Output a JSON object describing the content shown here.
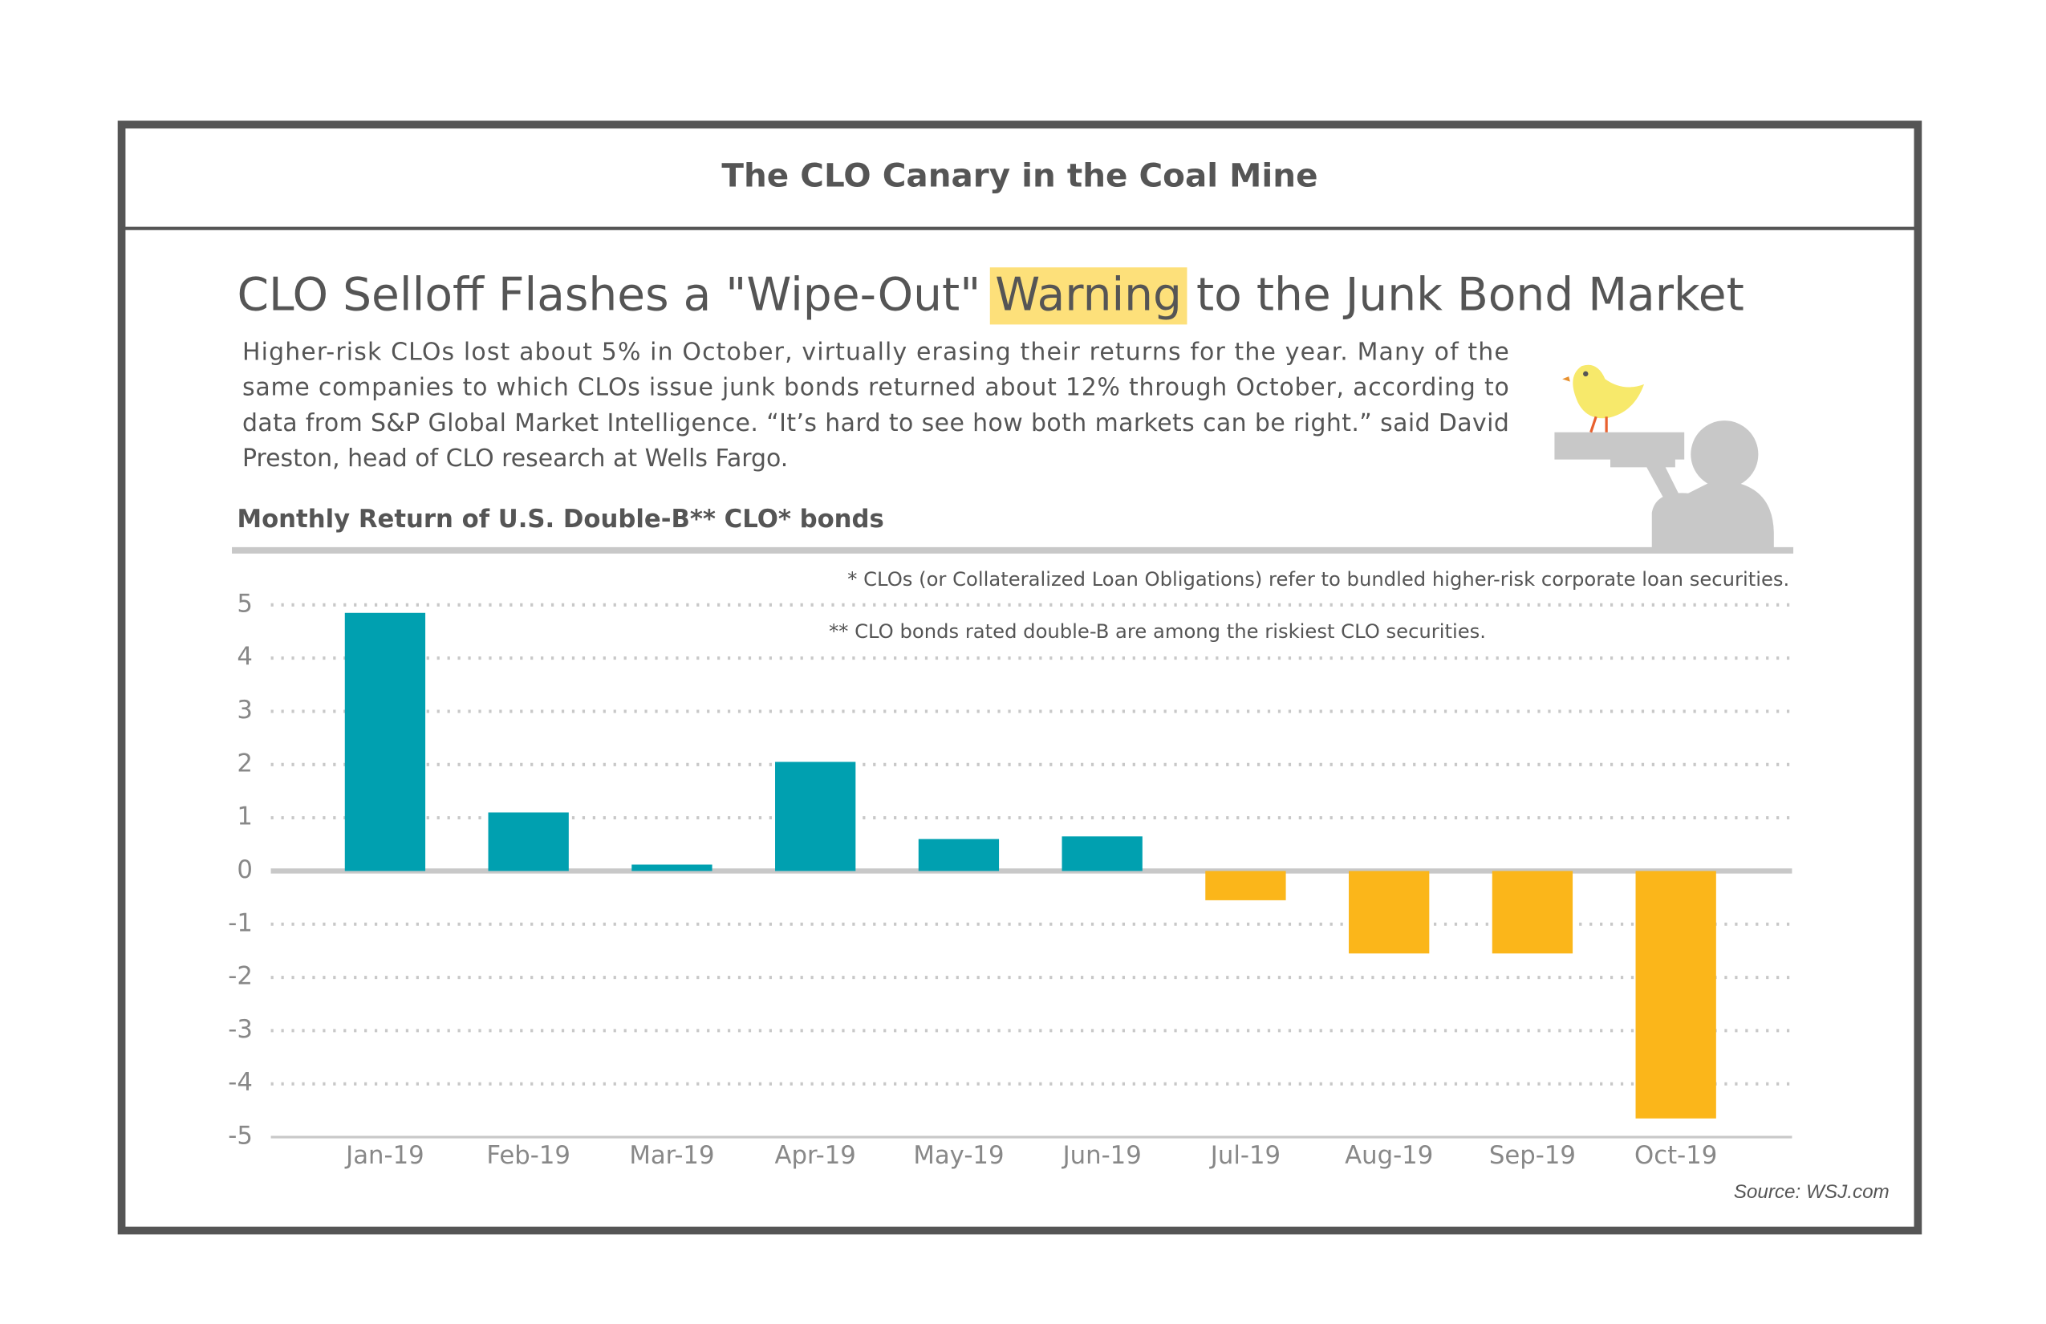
{
  "chart_data": {
    "type": "bar",
    "title": "The CLO Canary in the Coal Mine",
    "headline": {
      "before": "CLO Selloff Flashes a \"Wipe-Out\" ",
      "highlight": "Warning",
      "after": " to the Junk Bond Market"
    },
    "description": [
      "Higher-risk CLOs lost about 5% in October, virtually erasing their returns for the year. Many of the",
      "same companies to which CLOs issue junk bonds returned about 12% through October, according to",
      "data from S&P Global Market Intelligence. “It’s hard to see how both markets can be right.” said David",
      "Preston, head of CLO research at Wells Fargo."
    ],
    "chart_title": "Monthly Return of U.S. Double-B** CLO* bonds",
    "annotations": [
      "* CLOs (or Collateralized Loan Obligations) refer to bundled higher-risk corporate loan securities.",
      "** CLO bonds rated double-B are among the riskiest CLO securities."
    ],
    "source": "Source: WSJ.com",
    "categories": [
      "Jan-19",
      "Feb-19",
      "Mar-19",
      "Apr-19",
      "May-19",
      "Jun-19",
      "Jul-19",
      "Aug-19",
      "Sep-19",
      "Oct-19"
    ],
    "values": [
      4.85,
      1.1,
      0.12,
      2.05,
      0.6,
      0.65,
      -0.55,
      -1.55,
      -1.55,
      -4.65
    ],
    "colors": [
      "#00a0b0",
      "#00a0b0",
      "#00a0b0",
      "#00a0b0",
      "#00a0b0",
      "#00a0b0",
      "#fbb61a",
      "#fbb61a",
      "#fbb61a",
      "#fbb61a"
    ],
    "ylim": [
      -5,
      5
    ],
    "yticks": [
      5,
      4,
      3,
      2,
      1,
      0,
      -1,
      -2,
      -3,
      -4,
      -5
    ],
    "grid": true
  }
}
